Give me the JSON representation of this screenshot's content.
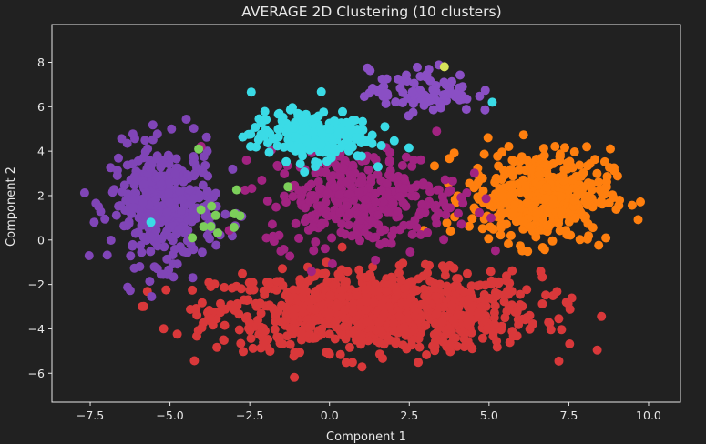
{
  "chart_data": {
    "type": "scatter",
    "title": "AVERAGE 2D Clustering (10 clusters)",
    "xlabel": "Component 1",
    "ylabel": "Component 2",
    "xlim": [
      -8.7,
      11.0
    ],
    "ylim": [
      -7.3,
      9.7
    ],
    "xticks": [
      -7.5,
      -5.0,
      -2.5,
      0.0,
      2.5,
      5.0,
      7.5,
      10.0
    ],
    "xtick_labels": [
      "−7.5",
      "−5.0",
      "−2.5",
      "0.0",
      "2.5",
      "5.0",
      "7.5",
      "10.0"
    ],
    "yticks": [
      -6,
      -4,
      -2,
      0,
      2,
      4,
      6,
      8
    ],
    "ytick_labels": [
      "−6",
      "−4",
      "−2",
      "0",
      "2",
      "4",
      "6",
      "8"
    ],
    "grid": false,
    "legend": "none",
    "background": "#212121",
    "axis_color": "#e8e8e8",
    "clusters": [
      {
        "color": "#d9383a",
        "center": [
          1.5,
          -3.2
        ],
        "spread": [
          4.6,
          1.6
        ],
        "range_x": [
          -6.6,
          8.9
        ],
        "range_y": [
          -6.6,
          0.9
        ],
        "points": 950
      },
      {
        "color": "#8045b7",
        "center": [
          -5.2,
          1.6
        ],
        "spread": [
          1.5,
          2.4
        ],
        "range_x": [
          -7.9,
          -2.2
        ],
        "range_y": [
          -2.7,
          6.4
        ],
        "points": 380
      },
      {
        "color": "#ff7f0e",
        "center": [
          6.6,
          2.0
        ],
        "spread": [
          2.0,
          1.9
        ],
        "range_x": [
          2.7,
          10.5
        ],
        "range_y": [
          -1.3,
          7.6
        ],
        "points": 420
      },
      {
        "color": "#a12381",
        "center": [
          1.0,
          1.9
        ],
        "spread": [
          2.7,
          2.0
        ],
        "range_x": [
          -4.2,
          6.0
        ],
        "range_y": [
          -2.3,
          8.2
        ],
        "points": 340
      },
      {
        "color": "#3adbe6",
        "center": [
          -0.6,
          4.7
        ],
        "spread": [
          1.7,
          1.0
        ],
        "range_x": [
          -3.6,
          3.6
        ],
        "range_y": [
          1.6,
          7.5
        ],
        "points": 230
      },
      {
        "color": "#8a4fc4",
        "center": [
          2.9,
          6.7
        ],
        "spread": [
          1.5,
          0.9
        ],
        "range_x": [
          0.3,
          5.2
        ],
        "range_y": [
          4.8,
          8.9
        ],
        "points": 90
      },
      {
        "color": "#7ccf5a",
        "center": [
          -3.2,
          0.9
        ],
        "spread": [
          0.8,
          1.1
        ],
        "range_x": [
          -4.3,
          -1.4
        ],
        "range_y": [
          -0.2,
          4.2
        ],
        "points": 10
      }
    ],
    "accent_points": [
      {
        "color": "#d8e35a",
        "x": 3.6,
        "y": 7.8
      },
      {
        "color": "#3adbe6",
        "x": -5.6,
        "y": 0.8
      },
      {
        "color": "#3adbe6",
        "x": 5.1,
        "y": 6.2
      },
      {
        "color": "#7ccf5a",
        "x": -4.1,
        "y": 4.1
      },
      {
        "color": "#7ccf5a",
        "x": -4.3,
        "y": 0.1
      },
      {
        "color": "#7ccf5a",
        "x": -1.3,
        "y": 2.4
      }
    ]
  }
}
